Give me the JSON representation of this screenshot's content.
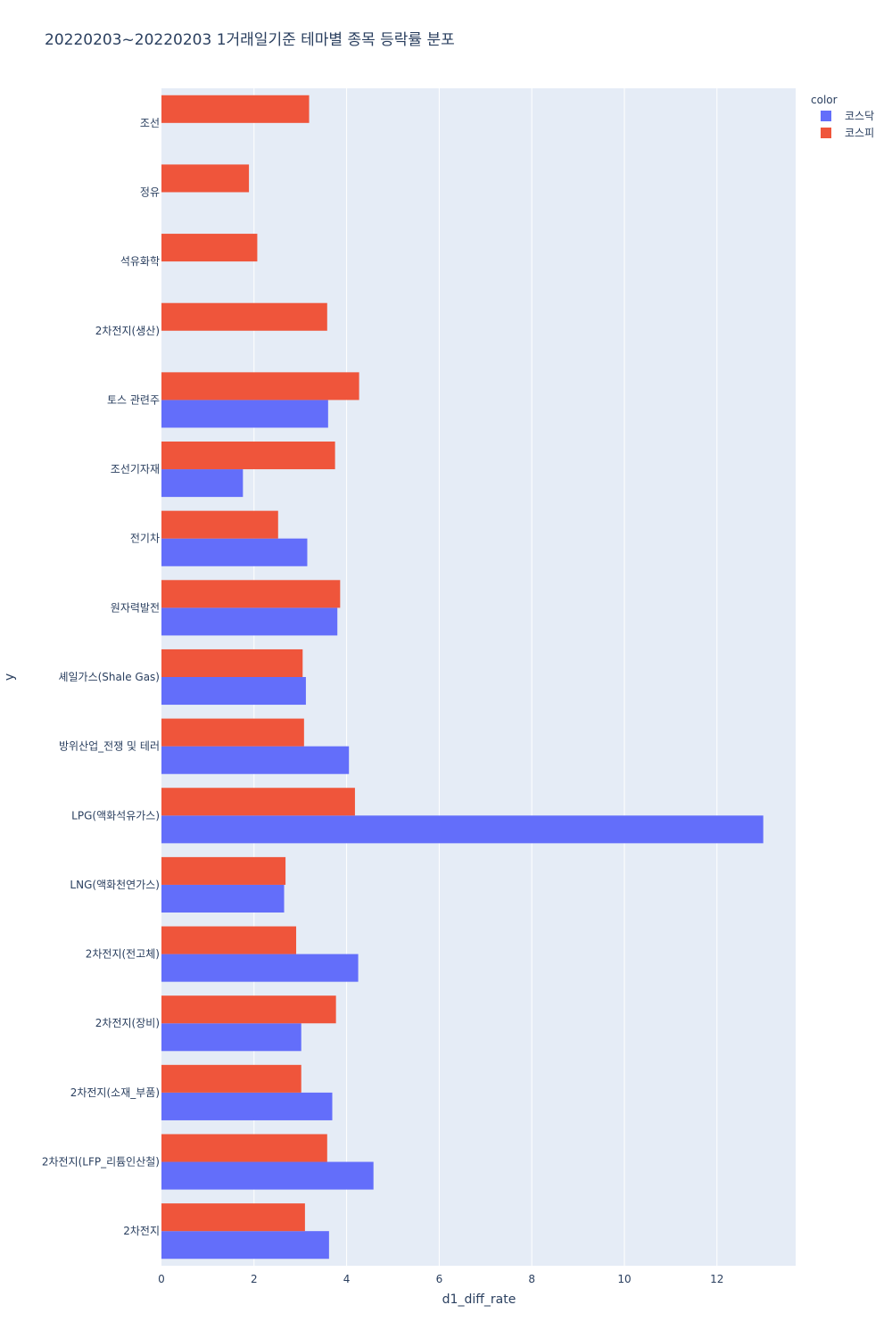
{
  "chart_data": {
    "type": "bar",
    "orientation": "horizontal",
    "barmode": "group",
    "title": "20220203~20220203 1거래일기준 테마별 종목 등락률 분포",
    "xlabel": "d1_diff_rate",
    "ylabel": "y",
    "xlim": [
      0,
      13.7
    ],
    "x_ticks": [
      "0",
      "2",
      "4",
      "6",
      "8",
      "10",
      "12"
    ],
    "grid": true,
    "legend_title": "color",
    "legend_position": "top-right",
    "categories": [
      "조선",
      "정유",
      "석유화학",
      "2차전지(생산)",
      "토스 관련주",
      "조선기자재",
      "전기차",
      "원자력발전",
      "셰일가스(Shale Gas)",
      "방위산업_전쟁 및 테러",
      "LPG(액화석유가스)",
      "LNG(액화천연가스)",
      "2차전지(전고체)",
      "2차전지(장비)",
      "2차전지(소재_부품)",
      "2차전지(LFP_리튬인산철)",
      "2차전지"
    ],
    "series": [
      {
        "name": "코스닥",
        "color": "#636efa",
        "values": [
          null,
          null,
          null,
          null,
          3.6,
          1.76,
          3.15,
          3.8,
          3.12,
          4.05,
          13.0,
          2.65,
          4.25,
          3.02,
          3.69,
          4.58,
          3.62
        ]
      },
      {
        "name": "코스피",
        "color": "#ef553b",
        "values": [
          3.19,
          1.89,
          2.07,
          3.58,
          4.27,
          3.75,
          2.52,
          3.86,
          3.05,
          3.08,
          4.18,
          2.68,
          2.91,
          3.77,
          3.02,
          3.58,
          3.1
        ]
      }
    ]
  }
}
